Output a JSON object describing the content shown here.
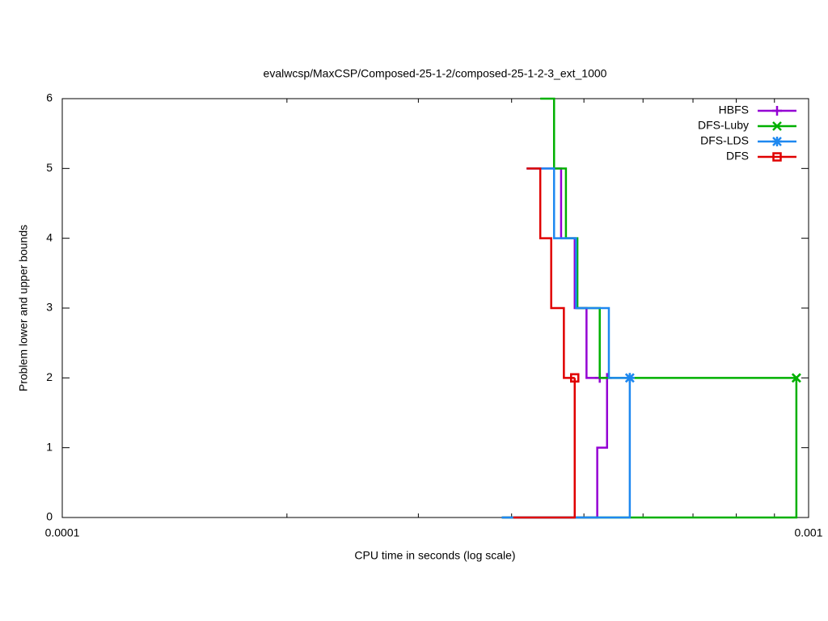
{
  "chart_data": {
    "type": "line",
    "title": "evalwcsp/MaxCSP/Composed-25-1-2/composed-25-1-2-3_ext_1000",
    "xlabel": "CPU time in seconds (log scale)",
    "ylabel": "Problem lower and upper bounds",
    "xscale": "log",
    "xlim": [
      0.0001,
      0.001
    ],
    "xticks": [
      0.0001,
      0.001
    ],
    "ylim": [
      0,
      6
    ],
    "yticks": [
      0,
      1,
      2,
      3,
      4,
      5,
      6
    ],
    "legend": "top-right",
    "series": [
      {
        "name": "HBFS",
        "color": "#9400d3",
        "marker": "plus",
        "x": [
          0.000419,
          0.000466,
          0.000486,
          0.000504,
          0.000525
        ],
        "values": [
          5,
          4,
          3,
          2,
          2
        ],
        "lower_x": [
          0.000388,
          0.000521,
          0.000537
        ],
        "lower_values": [
          0,
          1,
          2
        ]
      },
      {
        "name": "DFS-Luby",
        "color": "#00b000",
        "marker": "cross",
        "x": [
          0.000437,
          0.000456,
          0.000473,
          0.00049,
          0.000525,
          0.000963
        ],
        "values": [
          6,
          5,
          4,
          3,
          2,
          2
        ],
        "lower_x": [
          0.000388,
          0.000963
        ],
        "lower_values": [
          0,
          2
        ]
      },
      {
        "name": "DFS-LDS",
        "color": "#1e88f0",
        "marker": "star",
        "x": [
          0.000419,
          0.000456,
          0.000488,
          0.00054,
          0.000576
        ],
        "values": [
          5,
          4,
          3,
          2,
          2
        ],
        "lower_x": [
          0.000388,
          0.000576
        ],
        "lower_values": [
          0,
          2
        ]
      },
      {
        "name": "DFS",
        "color": "#e00000",
        "marker": "square",
        "x": [
          0.000419,
          0.000437,
          0.000452,
          0.00047,
          0.000486
        ],
        "values": [
          5,
          4,
          3,
          2,
          2
        ],
        "lower_x": [
          0.000402,
          0.000486
        ],
        "lower_values": [
          0,
          2
        ]
      }
    ]
  }
}
